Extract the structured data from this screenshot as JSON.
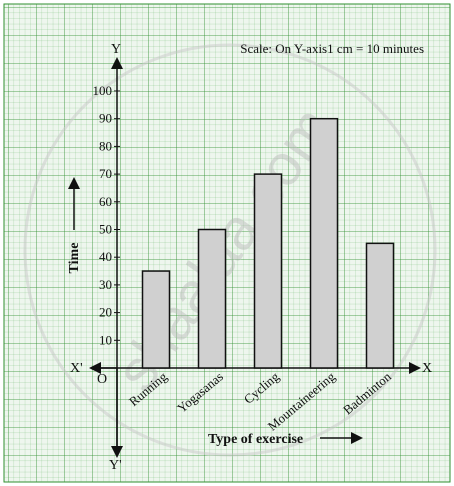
{
  "chart_data": {
    "type": "bar",
    "categories": [
      "Running",
      "Yogasanas",
      "Cycling",
      "Mountaineering",
      "Badminton"
    ],
    "values": [
      35,
      50,
      70,
      90,
      45
    ],
    "xlabel": "Type of exercise",
    "ylabel": "Time",
    "ylim": [
      0,
      100
    ],
    "yticks": [
      10,
      20,
      30,
      40,
      50,
      60,
      70,
      80,
      90,
      100
    ],
    "grid": true,
    "scale_note": "Scale: On Y-axis1 cm = 10 minutes",
    "origin_label": "O",
    "axis_letters": {
      "x": "X",
      "x_neg": "X'",
      "y": "Y",
      "y_neg": "Y'"
    },
    "bar_color": "#d0d0d0",
    "grid_color": "#3a9a3a"
  },
  "watermark": "shaalaa.com"
}
